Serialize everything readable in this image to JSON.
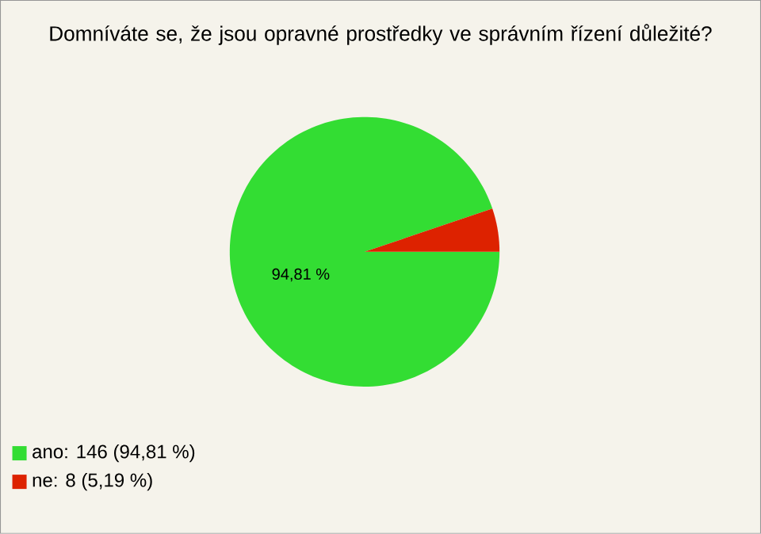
{
  "chart_data": {
    "type": "pie",
    "title": "Domníváte se, že jsou opravné prostředky ve správním řízení důležité?",
    "categories": [
      "ano: 146 (94,81 %)",
      "ne: 8 (5,19 %)"
    ],
    "values": [
      94.81,
      5.19
    ],
    "colors": [
      "#33dd33",
      "#dd2200"
    ],
    "value_labels": [
      "94,81 %",
      null
    ],
    "legend": "bottom left"
  }
}
